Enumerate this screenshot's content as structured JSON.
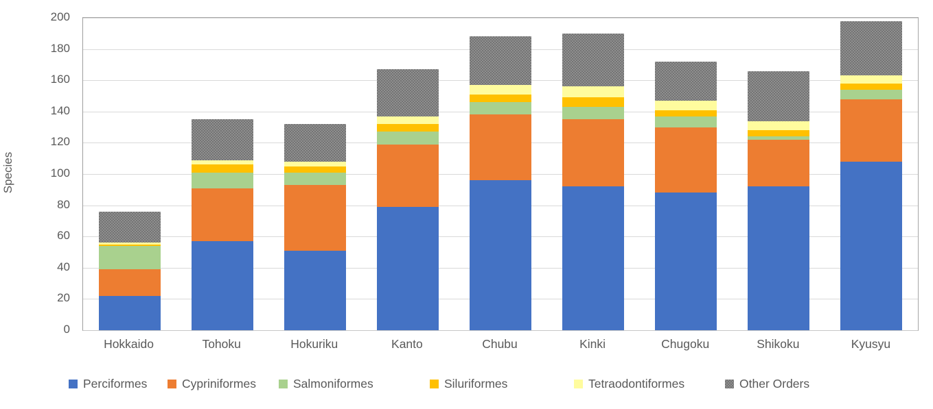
{
  "chart_data": {
    "type": "bar",
    "stacked": true,
    "title": "",
    "xlabel": "",
    "ylabel": "Species",
    "ylim": [
      0,
      200
    ],
    "ytick_step": 20,
    "grid": true,
    "legend_position": "bottom",
    "categories": [
      "Hokkaido",
      "Tohoku",
      "Hokuriku",
      "Kanto",
      "Chubu",
      "Kinki",
      "Chugoku",
      "Shikoku",
      "Kyusyu"
    ],
    "series": [
      {
        "name": "Perciformes",
        "color": "#4472C4",
        "pattern": "solid",
        "values": [
          22,
          57,
          51,
          79,
          96,
          92,
          88,
          92,
          108
        ]
      },
      {
        "name": "Cypriniformes",
        "color": "#ED7D31",
        "pattern": "solid",
        "values": [
          17,
          34,
          42,
          40,
          42,
          43,
          42,
          30,
          40
        ]
      },
      {
        "name": "Salmoniformes",
        "color": "#A9D18E",
        "pattern": "solid",
        "values": [
          15,
          10,
          8,
          8,
          8,
          8,
          7,
          2,
          6
        ]
      },
      {
        "name": "Siluriformes",
        "color": "#FFC000",
        "pattern": "solid",
        "values": [
          1,
          5,
          4,
          5,
          5,
          6,
          4,
          4,
          4
        ]
      },
      {
        "name": "Tetraodontiformes",
        "color": "#FFFC9E",
        "pattern": "solid",
        "values": [
          1,
          3,
          3,
          5,
          6,
          7,
          6,
          6,
          5
        ]
      },
      {
        "name": "Other Orders",
        "color": "#7F7F7F",
        "pattern": "checker",
        "values": [
          20,
          26,
          24,
          30,
          31,
          34,
          25,
          32,
          35
        ]
      }
    ],
    "totals": [
      76,
      135,
      132,
      167,
      188,
      190,
      172,
      166,
      198
    ]
  },
  "axes": {
    "y_title": "Species"
  },
  "style_colors": {
    "axis_text": "#595959",
    "gridline": "#D9D9D9",
    "plot_border": "#A6A6A6"
  }
}
